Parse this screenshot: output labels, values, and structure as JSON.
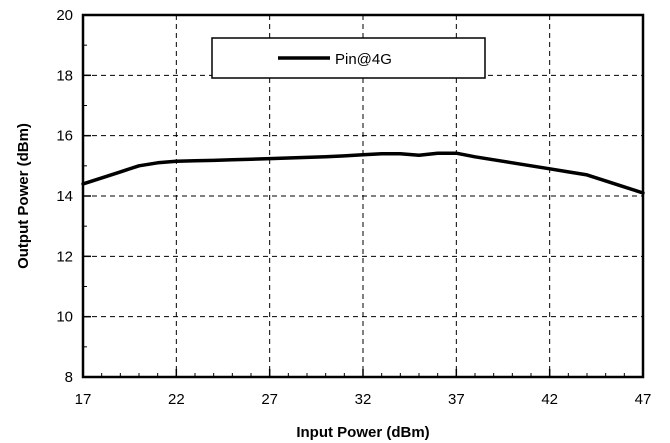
{
  "chart_data": {
    "type": "line",
    "xlabel": "Input Power (dBm)",
    "ylabel": "Output Power (dBm)",
    "xlim": [
      17,
      47
    ],
    "ylim": [
      8,
      20
    ],
    "xticks": [
      17,
      22,
      27,
      32,
      37,
      42,
      47
    ],
    "yticks": [
      8,
      10,
      12,
      14,
      16,
      18,
      20
    ],
    "grid": true,
    "grid_style": "dashed",
    "legend_position": "top-center",
    "series": [
      {
        "name": "Pin@4G",
        "color": "#000000",
        "x": [
          17,
          18,
          19,
          20,
          21,
          22,
          23,
          24,
          25,
          26,
          27,
          28,
          29,
          30,
          31,
          32,
          33,
          34,
          35,
          36,
          37,
          38,
          39,
          40,
          41,
          42,
          43,
          44,
          45,
          46,
          47
        ],
        "y": [
          14.4,
          14.6,
          14.8,
          15.0,
          15.1,
          15.15,
          15.17,
          15.18,
          15.2,
          15.22,
          15.24,
          15.26,
          15.28,
          15.3,
          15.33,
          15.37,
          15.4,
          15.4,
          15.35,
          15.42,
          15.42,
          15.3,
          15.2,
          15.1,
          15.0,
          14.9,
          14.8,
          14.7,
          14.5,
          14.3,
          14.1
        ]
      }
    ]
  }
}
